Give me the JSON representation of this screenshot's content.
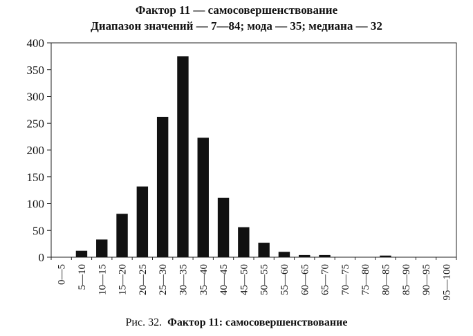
{
  "title": "Фактор 11 — самосовершенствование",
  "subtitle": "Диапазон значений — 7—84; мода — 35; медиана — 32",
  "caption": {
    "prefix": "Рис. 32.",
    "text": "Фактор 11:  самосовершенствование"
  },
  "chart_data": {
    "type": "bar",
    "categories": [
      "0—5",
      "5—10",
      "10—15",
      "15—20",
      "20—25",
      "25—30",
      "30—35",
      "35—40",
      "40—45",
      "45—50",
      "50—55",
      "55—60",
      "60—65",
      "65—70",
      "70—75",
      "75—80",
      "80—85",
      "85—90",
      "90—95",
      "95—100"
    ],
    "values": [
      0,
      12,
      33,
      81,
      132,
      262,
      375,
      223,
      111,
      56,
      27,
      10,
      4,
      4,
      0,
      0,
      3,
      0,
      0,
      0
    ],
    "ylim": [
      0,
      400
    ],
    "yticks": [
      0,
      50,
      100,
      150,
      200,
      250,
      300,
      350,
      400
    ],
    "grid": false,
    "color": "#111111"
  }
}
